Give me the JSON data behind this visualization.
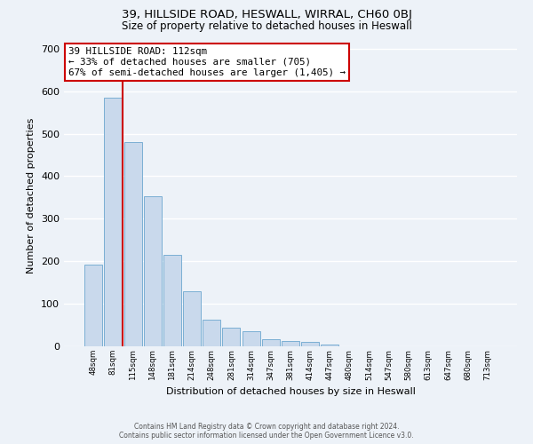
{
  "title": "39, HILLSIDE ROAD, HESWALL, WIRRAL, CH60 0BJ",
  "subtitle": "Size of property relative to detached houses in Heswall",
  "xlabel": "Distribution of detached houses by size in Heswall",
  "ylabel": "Number of detached properties",
  "bin_labels": [
    "48sqm",
    "81sqm",
    "115sqm",
    "148sqm",
    "181sqm",
    "214sqm",
    "248sqm",
    "281sqm",
    "314sqm",
    "347sqm",
    "381sqm",
    "414sqm",
    "447sqm",
    "480sqm",
    "514sqm",
    "547sqm",
    "580sqm",
    "613sqm",
    "647sqm",
    "680sqm",
    "713sqm"
  ],
  "bar_values": [
    193,
    585,
    480,
    352,
    215,
    130,
    62,
    43,
    35,
    17,
    13,
    10,
    4,
    0,
    0,
    0,
    0,
    0,
    0,
    0,
    0
  ],
  "bar_color": "#c9d9ec",
  "bar_edge_color": "#7bafd4",
  "property_line_label": "39 HILLSIDE ROAD: 112sqm",
  "annotation_line1": "← 33% of detached houses are smaller (705)",
  "annotation_line2": "67% of semi-detached houses are larger (1,405) →",
  "annotation_box_color": "#ffffff",
  "annotation_box_edge_color": "#cc0000",
  "vline_color": "#cc0000",
  "ylim": [
    0,
    710
  ],
  "yticks": [
    0,
    100,
    200,
    300,
    400,
    500,
    600,
    700
  ],
  "footer1": "Contains HM Land Registry data © Crown copyright and database right 2024.",
  "footer2": "Contains public sector information licensed under the Open Government Licence v3.0.",
  "bg_color": "#edf2f8",
  "grid_color": "#ffffff"
}
